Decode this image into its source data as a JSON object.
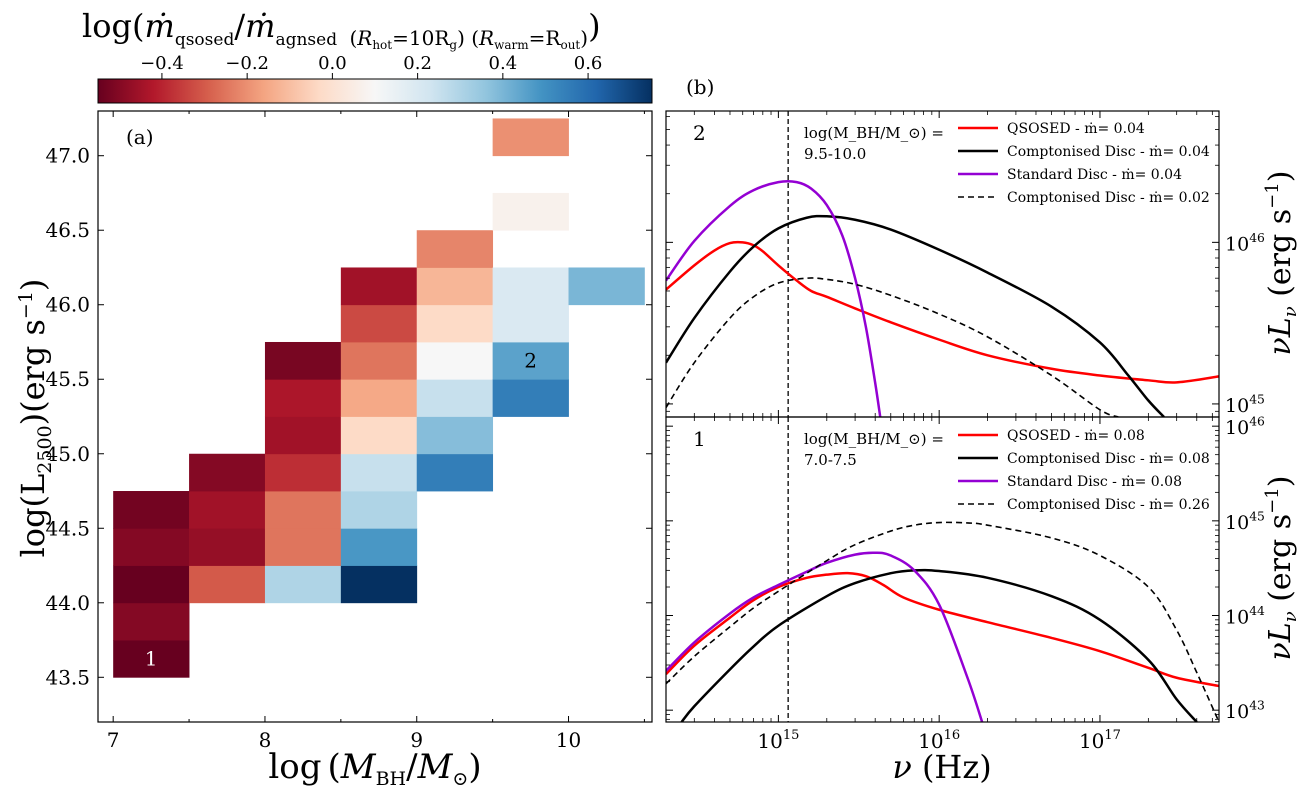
{
  "colorbar": {
    "label_math": "ṁ",
    "label_sub1": "qsosed",
    "label_sub2": "agnsed",
    "label_hot": "hot",
    "label_hot_val": "=10R",
    "label_hot_g": "g",
    "label_warm": "warm",
    "label_warm_val": "=R",
    "label_warm_out": "out",
    "ticks": [
      "−0.4",
      "−0.2",
      "0.0",
      "0.2",
      "0.4",
      "0.6"
    ],
    "range": [
      -0.55,
      0.75
    ],
    "colormap": "RdBu"
  },
  "chart_data": [
    {
      "type": "heatmap",
      "panel_label": "(a)",
      "xlabel": "log (M_BH/M_⊙)",
      "ylabel": "log(L_2500)(erg s^-1)",
      "xlim": [
        6.9,
        10.55
      ],
      "ylim": [
        43.2,
        47.3
      ],
      "x_ticks": [
        "7",
        "8",
        "9",
        "10"
      ],
      "y_ticks": [
        "43.5",
        "44.0",
        "44.5",
        "45.0",
        "45.5",
        "46.0",
        "46.5",
        "47.0"
      ],
      "bin_width_x": 0.5,
      "bin_height_y": 0.25,
      "cells": [
        {
          "x": 7.0,
          "y": 43.5,
          "v": -0.55
        },
        {
          "x": 7.0,
          "y": 43.75,
          "v": -0.5
        },
        {
          "x": 7.0,
          "y": 44.0,
          "v": -0.55
        },
        {
          "x": 7.0,
          "y": 44.25,
          "v": -0.5
        },
        {
          "x": 7.0,
          "y": 44.5,
          "v": -0.53
        },
        {
          "x": 7.5,
          "y": 44.0,
          "v": -0.3
        },
        {
          "x": 7.5,
          "y": 44.25,
          "v": -0.47
        },
        {
          "x": 7.5,
          "y": 44.5,
          "v": -0.45
        },
        {
          "x": 7.5,
          "y": 44.75,
          "v": -0.5
        },
        {
          "x": 8.0,
          "y": 44.0,
          "v": 0.3
        },
        {
          "x": 8.0,
          "y": 44.25,
          "v": -0.25
        },
        {
          "x": 8.0,
          "y": 44.5,
          "v": -0.25
        },
        {
          "x": 8.0,
          "y": 44.75,
          "v": -0.38
        },
        {
          "x": 8.0,
          "y": 45.0,
          "v": -0.45
        },
        {
          "x": 8.0,
          "y": 45.25,
          "v": -0.43
        },
        {
          "x": 8.0,
          "y": 45.5,
          "v": -0.52
        },
        {
          "x": 8.5,
          "y": 44.0,
          "v": 0.75
        },
        {
          "x": 8.5,
          "y": 44.25,
          "v": 0.48
        },
        {
          "x": 8.5,
          "y": 44.5,
          "v": 0.3
        },
        {
          "x": 8.5,
          "y": 44.75,
          "v": 0.25
        },
        {
          "x": 8.5,
          "y": 45.0,
          "v": -0.03
        },
        {
          "x": 8.5,
          "y": 45.25,
          "v": -0.15
        },
        {
          "x": 8.5,
          "y": 45.5,
          "v": -0.25
        },
        {
          "x": 8.5,
          "y": 45.75,
          "v": -0.33
        },
        {
          "x": 8.5,
          "y": 46.0,
          "v": -0.45
        },
        {
          "x": 9.0,
          "y": 44.75,
          "v": 0.55
        },
        {
          "x": 9.0,
          "y": 45.0,
          "v": 0.38
        },
        {
          "x": 9.0,
          "y": 45.25,
          "v": 0.25
        },
        {
          "x": 9.0,
          "y": 45.5,
          "v": 0.1
        },
        {
          "x": 9.0,
          "y": 45.75,
          "v": -0.03
        },
        {
          "x": 9.0,
          "y": 46.0,
          "v": -0.12
        },
        {
          "x": 9.0,
          "y": 46.25,
          "v": -0.22
        },
        {
          "x": 9.5,
          "y": 45.25,
          "v": 0.55
        },
        {
          "x": 9.5,
          "y": 45.5,
          "v": 0.45
        },
        {
          "x": 9.5,
          "y": 45.75,
          "v": 0.2
        },
        {
          "x": 9.5,
          "y": 46.0,
          "v": 0.2
        },
        {
          "x": 9.5,
          "y": 46.5,
          "v": 0.07
        },
        {
          "x": 9.5,
          "y": 47.0,
          "v": -0.2
        },
        {
          "x": 10.0,
          "y": 46.0,
          "v": 0.4
        }
      ],
      "annotations": [
        {
          "text": "1",
          "x": 7.25,
          "y": 43.625,
          "color": "#ffffff"
        },
        {
          "text": "2",
          "x": 9.75,
          "y": 45.625,
          "color": "#000000"
        }
      ]
    },
    {
      "type": "line",
      "panel_label": "(b)",
      "x_scale": "log",
      "xlabel": "ν (Hz)",
      "x_ticks": [
        "10^15",
        "10^16",
        "10^17"
      ],
      "xlim": [
        200000000000000.0,
        5.5e+17
      ],
      "vline_x": 1150000000000000.0,
      "subpanels": [
        {
          "id": "top",
          "number": "2",
          "mass_label_line1": "log(M_BH/M_⊙) =",
          "mass_label_line2": "9.5-10.0",
          "y_scale": "log",
          "ylabel": "νL_ν (erg s^-1)",
          "ylim": [
            8.3e+44,
            6.5e+46
          ],
          "y_ticks": [
            "10^45",
            "10^46"
          ],
          "series": [
            {
              "name": "QSOSED - ṁ= 0.04",
              "color": "#ff0000",
              "dash": "solid",
              "x": [
                200000000000000.0,
                300000000000000.0,
                400000000000000.0,
                500000000000000.0,
                600000000000000.0,
                700000000000000.0,
                800000000000000.0,
                1000000000000000.0,
                1300000000000000.0,
                1600000000000000.0,
                2000000000000000.0,
                3000000000000000.0,
                5000000000000000.0,
                1e+16,
                2e+16,
                5e+16,
                1e+17,
                2e+17,
                3e+17,
                5.5e+17
              ],
              "y": [
                5.1e+45,
                7.2e+45,
                8.9e+45,
                9.9e+45,
                1e+46,
                9.6e+45,
                8.8e+45,
                7.2e+45,
                5.8e+45,
                5e+45,
                4.6e+45,
                3.9e+45,
                3.2e+45,
                2.5e+45,
                2e+45,
                1.65e+45,
                1.5e+45,
                1.4e+45,
                1.36e+45,
                1.48e+45
              ]
            },
            {
              "name": "Comptonised Disc - ṁ= 0.04",
              "color": "#000000",
              "dash": "solid",
              "x": [
                200000000000000.0,
                300000000000000.0,
                500000000000000.0,
                700000000000000.0,
                1000000000000000.0,
                1500000000000000.0,
                2000000000000000.0,
                3000000000000000.0,
                5000000000000000.0,
                1e+16,
                2e+16,
                5e+16,
                1e+17,
                1.5e+17,
                2e+17,
                2.5e+17
              ],
              "y": [
                1.8e+45,
                3.4e+45,
                6.6e+45,
                9.4e+45,
                1.22e+46,
                1.42e+46,
                1.45e+46,
                1.38e+46,
                1.2e+46,
                9e+45,
                6.5e+45,
                4e+45,
                2.4e+45,
                1.5e+45,
                1.05e+45,
                8.3e+44
              ]
            },
            {
              "name": "Standard Disc - ṁ= 0.04",
              "color": "#9400d3",
              "dash": "solid",
              "x": [
                200000000000000.0,
                300000000000000.0,
                500000000000000.0,
                700000000000000.0,
                1000000000000000.0,
                1300000000000000.0,
                1600000000000000.0,
                2000000000000000.0,
                2500000000000000.0,
                3000000000000000.0,
                3500000000000000.0,
                4000000000000000.0,
                4300000000000000.0
              ],
              "y": [
                5.8e+45,
                1.02e+46,
                1.68e+46,
                2.1e+46,
                2.36e+46,
                2.36e+46,
                2.15e+46,
                1.7e+46,
                1.1e+46,
                6e+45,
                3e+45,
                1.35e+45,
                8.3e+44
              ]
            },
            {
              "name": "Comptonised Disc - ṁ= 0.02",
              "color": "#000000",
              "dash": "dashed",
              "x": [
                200000000000000.0,
                300000000000000.0,
                500000000000000.0,
                700000000000000.0,
                1000000000000000.0,
                1500000000000000.0,
                2000000000000000.0,
                3000000000000000.0,
                5000000000000000.0,
                1e+16,
                2e+16,
                5e+16,
                1e+17,
                1.3e+17
              ],
              "y": [
                9.5e+44,
                1.8e+45,
                3.4e+45,
                4.6e+45,
                5.6e+45,
                6e+45,
                5.9e+45,
                5.5e+45,
                4.7e+45,
                3.6e+45,
                2.6e+45,
                1.5e+45,
                9.2e+44,
                8.3e+44
              ]
            }
          ]
        },
        {
          "id": "bottom",
          "number": "1",
          "mass_label_line1": "log(M_BH/M_⊙) =",
          "mass_label_line2": "7.0-7.5",
          "y_scale": "log",
          "ylabel": "νL_ν (erg s^-1)",
          "ylim": [
            7.5e+42,
            1.25e+46
          ],
          "y_ticks": [
            "10^43",
            "10^44",
            "10^45",
            "10^46"
          ],
          "series": [
            {
              "name": "QSOSED - ṁ= 0.08",
              "color": "#ff0000",
              "dash": "solid",
              "x": [
                200000000000000.0,
                300000000000000.0,
                500000000000000.0,
                700000000000000.0,
                1000000000000000.0,
                1500000000000000.0,
                2000000000000000.0,
                2700000000000000.0,
                3500000000000000.0,
                4500000000000000.0,
                6000000000000000.0,
                1e+16,
                2e+16,
                5e+16,
                1e+17,
                2e+17,
                3e+17,
                5.5e+17
              ],
              "y": [
                2.4e+43,
                4.8e+43,
                9.5e+43,
                1.45e+44,
                2e+44,
                2.5e+44,
                2.7e+44,
                2.8e+44,
                2.6e+44,
                2.1e+44,
                1.55e+44,
                1.15e+44,
                8.5e+43,
                5.8e+43,
                4.2e+43,
                2.8e+43,
                2.2e+43,
                1.8e+43
              ]
            },
            {
              "name": "Comptonised Disc - ṁ= 0.08",
              "color": "#000000",
              "dash": "solid",
              "x": [
                250000000000000.0,
                300000000000000.0,
                500000000000000.0,
                700000000000000.0,
                1000000000000000.0,
                2000000000000000.0,
                3000000000000000.0,
                5000000000000000.0,
                7000000000000000.0,
                1e+16,
                2e+16,
                5e+16,
                1e+17,
                2e+17,
                3e+17,
                4e+17
              ],
              "y": [
                7.5e+42,
                1.1e+43,
                2.7e+43,
                4.7e+43,
                7.8e+43,
                1.6e+44,
                2.2e+44,
                2.8e+44,
                3e+44,
                2.95e+44,
                2.5e+44,
                1.6e+44,
                9e+43,
                3.4e+43,
                1.3e+43,
                7.5e+42
              ]
            },
            {
              "name": "Standard Disc - ṁ= 0.08",
              "color": "#9400d3",
              "dash": "solid",
              "x": [
                200000000000000.0,
                300000000000000.0,
                500000000000000.0,
                700000000000000.0,
                1000000000000000.0,
                1500000000000000.0,
                2000000000000000.0,
                3000000000000000.0,
                4000000000000000.0,
                5000000000000000.0,
                7000000000000000.0,
                1e+16,
                1.5e+16,
                1.85e+16
              ],
              "y": [
                2.6e+43,
                5.2e+43,
                1.05e+44,
                1.55e+44,
                2.1e+44,
                2.9e+44,
                3.6e+44,
                4.4e+44,
                4.6e+44,
                4.3e+44,
                3e+44,
                1.3e+44,
                2.2e+43,
                7.5e+42
              ]
            },
            {
              "name": "Comptonised Disc - ṁ= 0.26",
              "color": "#000000",
              "dash": "dashed",
              "x": [
                200000000000000.0,
                300000000000000.0,
                500000000000000.0,
                700000000000000.0,
                1000000000000000.0,
                2000000000000000.0,
                3000000000000000.0,
                5000000000000000.0,
                7000000000000000.0,
                1e+16,
                1.5e+16,
                2e+16,
                5e+16,
                1e+17,
                2e+17,
                3e+17,
                4e+17,
                5.5e+17
              ],
              "y": [
                1.9e+43,
                3.7e+43,
                7.6e+43,
                1.2e+44,
                1.8e+44,
                3.8e+44,
                5.6e+44,
                7.8e+44,
                9e+44,
                9.6e+44,
                9.5e+44,
                9e+44,
                6.6e+44,
                4.3e+44,
                2e+44,
                7e+43,
                2.5e+43,
                7.5e+42
              ]
            }
          ]
        }
      ]
    }
  ]
}
